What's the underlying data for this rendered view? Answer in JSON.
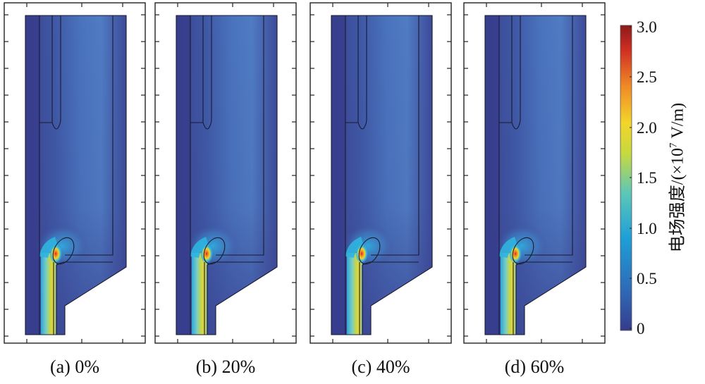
{
  "panels": [
    {
      "caption": "(a) 0%"
    },
    {
      "caption": "(b) 20%"
    },
    {
      "caption": "(c) 40%"
    },
    {
      "caption": "(d) 60%"
    }
  ],
  "colorbar": {
    "title_prefix": "电场强度/(×10",
    "title_exponent": "7",
    "title_suffix": " V/m)",
    "ticks": [
      "3.0",
      "2.5",
      "2.0",
      "1.5",
      "1.0",
      "0.5",
      "0"
    ],
    "colors": [
      "#363b8c",
      "#2f66b4",
      "#1e9ed8",
      "#5cc7b8",
      "#c7d93f",
      "#f3d52a",
      "#f08a26",
      "#cf2e22",
      "#8a1b1a"
    ]
  }
}
